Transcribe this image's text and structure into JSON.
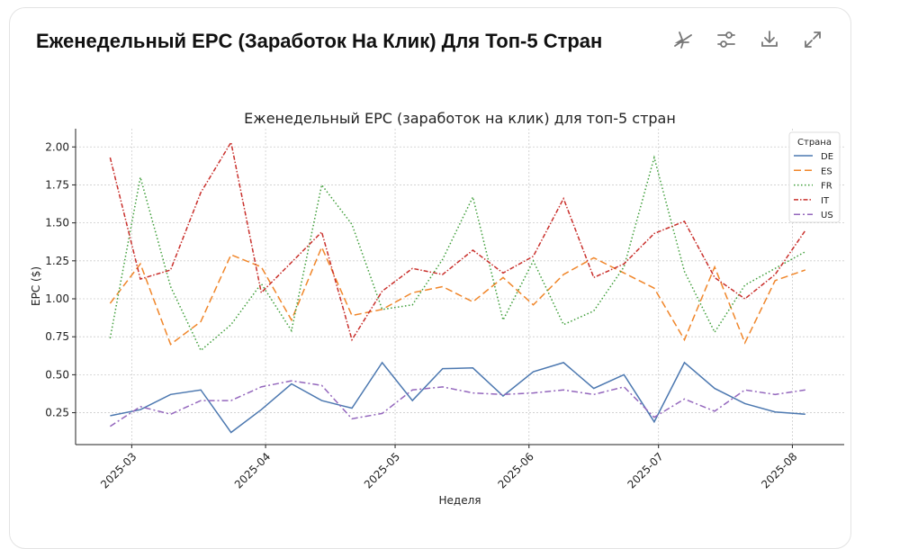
{
  "header": {
    "title": "Еженедельный EPC (Заработок На Клик) Для Топ-5 Стран",
    "icons": [
      "pin-off-icon",
      "sliders-icon",
      "download-icon",
      "expand-icon"
    ]
  },
  "chart_data": {
    "type": "line",
    "title": "Еженедельный EPC (заработок на клик) для топ-5 стран",
    "xlabel": "Неделя",
    "ylabel": "EPC ($)",
    "ylim": [
      0.04,
      2.12
    ],
    "xlim": [
      "2025-02-16",
      "2025-08-13"
    ],
    "grid": true,
    "legend_title": "Страна",
    "legend_position": "top-right",
    "x_ticks": [
      "2025-03",
      "2025-04",
      "2025-05",
      "2025-06",
      "2025-07",
      "2025-08"
    ],
    "y_ticks": [
      "0.25",
      "0.50",
      "0.75",
      "1.00",
      "1.25",
      "1.50",
      "1.75",
      "2.00"
    ],
    "x": [
      "2025-02-24",
      "2025-03-03",
      "2025-03-10",
      "2025-03-17",
      "2025-03-24",
      "2025-03-31",
      "2025-04-07",
      "2025-04-14",
      "2025-04-21",
      "2025-04-28",
      "2025-05-05",
      "2025-05-12",
      "2025-05-19",
      "2025-05-26",
      "2025-06-02",
      "2025-06-09",
      "2025-06-16",
      "2025-06-23",
      "2025-06-30",
      "2025-07-07",
      "2025-07-14",
      "2025-07-21",
      "2025-07-28",
      "2025-08-04"
    ],
    "series": [
      {
        "name": "DE",
        "color": "#4c78b0",
        "dash": "",
        "values": [
          0.23,
          0.27,
          0.37,
          0.4,
          0.12,
          0.27,
          0.44,
          0.33,
          0.28,
          0.58,
          0.33,
          0.54,
          0.545,
          0.36,
          0.52,
          0.58,
          0.41,
          0.5,
          0.19,
          0.58,
          0.41,
          0.31,
          0.255,
          0.24
        ]
      },
      {
        "name": "ES",
        "color": "#f0862a",
        "dash": "8,4",
        "values": [
          0.97,
          1.23,
          0.7,
          0.85,
          1.29,
          1.21,
          0.86,
          1.34,
          0.89,
          0.93,
          1.04,
          1.08,
          0.98,
          1.14,
          0.96,
          1.16,
          1.27,
          1.17,
          1.07,
          0.73,
          1.21,
          0.71,
          1.12,
          1.19
        ]
      },
      {
        "name": "FR",
        "color": "#3f9e3a",
        "dash": "1.5,2.5",
        "values": [
          0.74,
          1.8,
          1.08,
          0.66,
          0.83,
          1.1,
          0.79,
          1.75,
          1.49,
          0.93,
          0.96,
          1.26,
          1.67,
          0.86,
          1.25,
          0.83,
          0.92,
          1.21,
          1.93,
          1.18,
          0.78,
          1.09,
          1.2,
          1.31
        ]
      },
      {
        "name": "IT",
        "color": "#c9302c",
        "dash": "5,2,1.5,2",
        "values": [
          1.93,
          1.13,
          1.19,
          1.7,
          2.03,
          1.04,
          1.24,
          1.44,
          0.73,
          1.05,
          1.2,
          1.16,
          1.32,
          1.17,
          1.28,
          1.66,
          1.14,
          1.23,
          1.43,
          1.51,
          1.14,
          1.0,
          1.16,
          1.45
        ]
      },
      {
        "name": "US",
        "color": "#9467bd",
        "dash": "7,3,2,3",
        "values": [
          0.16,
          0.29,
          0.24,
          0.33,
          0.33,
          0.42,
          0.46,
          0.43,
          0.21,
          0.245,
          0.4,
          0.42,
          0.38,
          0.37,
          0.38,
          0.4,
          0.37,
          0.42,
          0.22,
          0.34,
          0.26,
          0.4,
          0.37,
          0.4
        ]
      }
    ]
  }
}
